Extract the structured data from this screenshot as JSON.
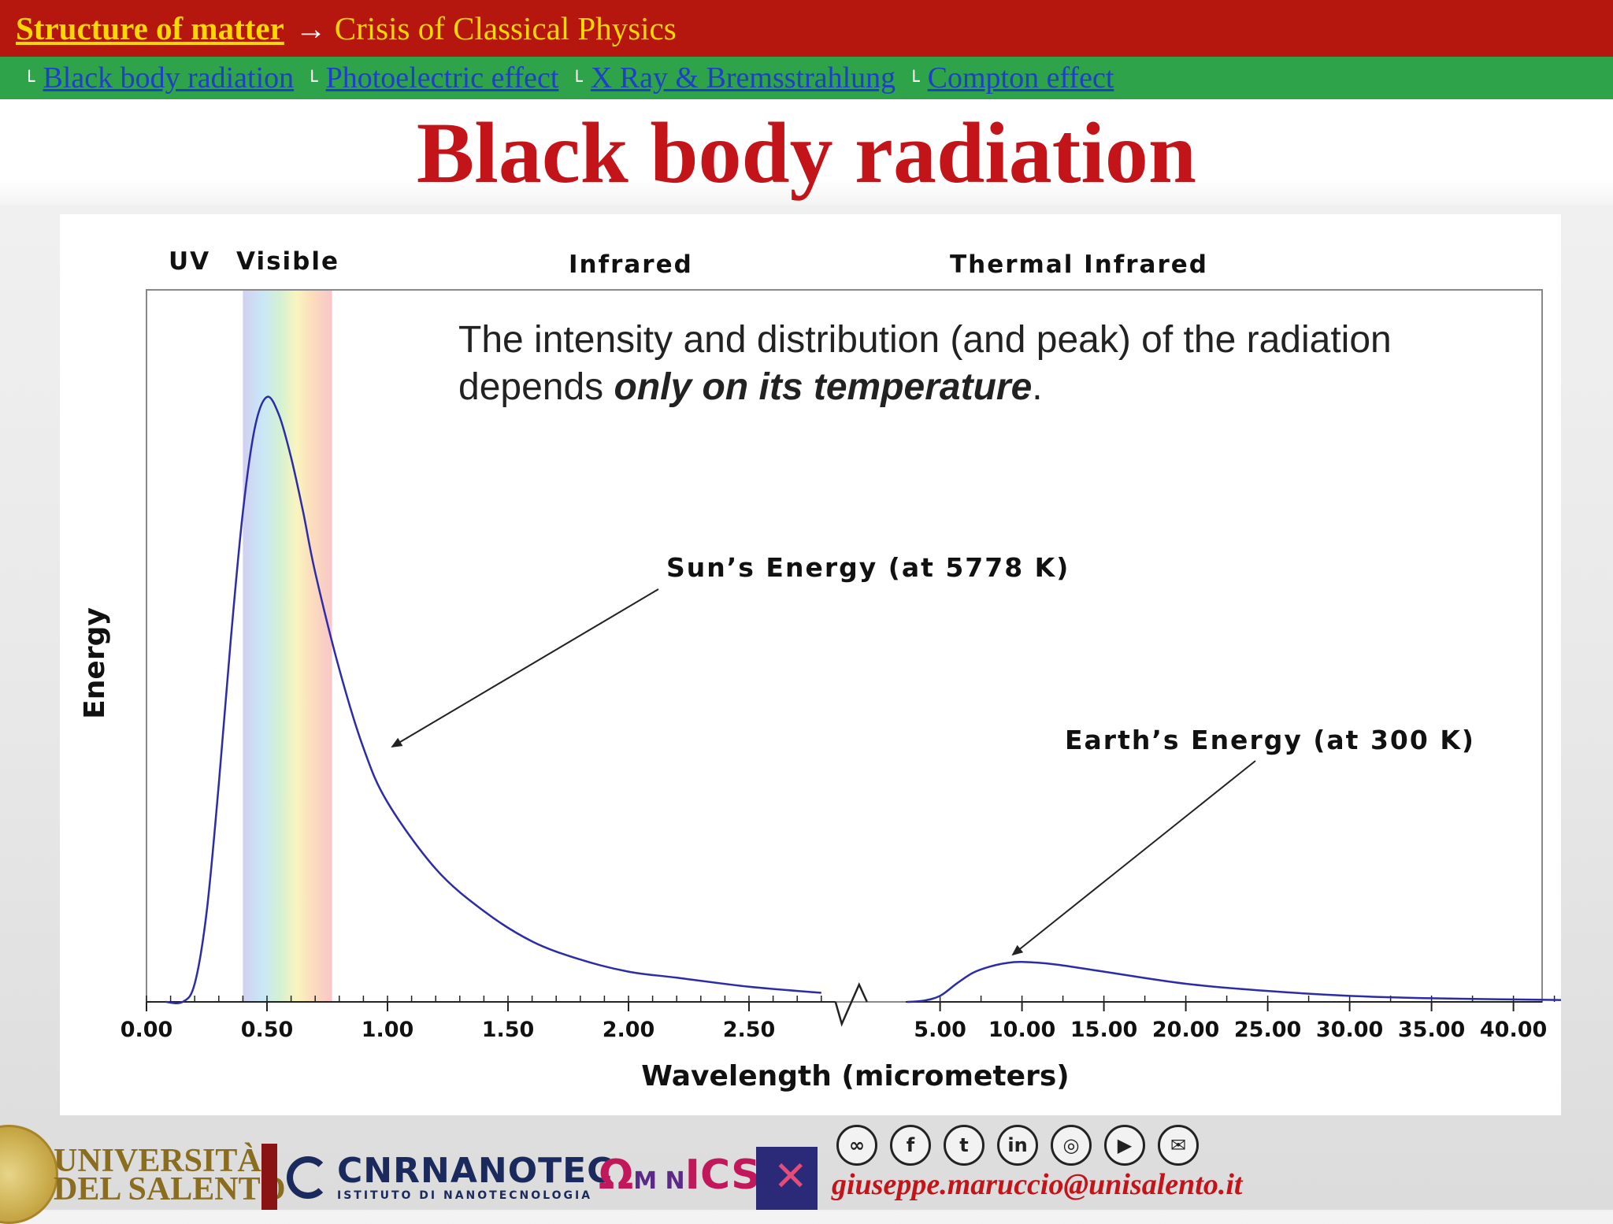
{
  "header": {
    "breadcrumb_main": "Structure of matter",
    "breadcrumb_arrow": "→",
    "breadcrumb_sub": "Crisis of Classical Physics"
  },
  "nav": {
    "items": [
      {
        "label": "Black body radiation "
      },
      {
        "label": "Photoelectric effect "
      },
      {
        "label": "X Ray & Bremsstrahlung "
      },
      {
        "label": "Compton effect"
      }
    ]
  },
  "title": "Black body radiation",
  "info_text": {
    "line1": "The intensity and distribution (and peak) of the radiation",
    "prefix": "depends ",
    "emphasis": "only on its temperature",
    "suffix": "."
  },
  "colors": {
    "accent_red": "#c3141a",
    "top_bar": "#b5170f",
    "nav_bar": "#2fa34a",
    "nav_link": "#1e40c8",
    "breadcrumb": "#ffd700",
    "curve": "#2c2ca8"
  },
  "chart_data": {
    "type": "line",
    "xlabel": "Wavelength (micrometers)",
    "ylabel": "Energy",
    "band_labels": [
      "UV",
      "Visible",
      "Infrared",
      "Thermal Infrared"
    ],
    "x_axis_broken": true,
    "ticks_left": [
      "0.00",
      "0.50",
      "1.00",
      "1.50",
      "2.00",
      "2.50"
    ],
    "ticks_right": [
      "5.00",
      "10.00",
      "15.00",
      "20.00",
      "25.00",
      "30.00",
      "35.00",
      "40.00"
    ],
    "visible_band": [
      0.4,
      0.77
    ],
    "series": [
      {
        "name": "Sun's Energy (at 5778 K)",
        "x": [
          0.15,
          0.2,
          0.25,
          0.3,
          0.35,
          0.4,
          0.45,
          0.5,
          0.55,
          0.6,
          0.65,
          0.7,
          0.8,
          0.9,
          1.0,
          1.2,
          1.4,
          1.6,
          1.8,
          2.0,
          2.2,
          2.5,
          2.8
        ],
        "y": [
          0.0,
          0.03,
          0.15,
          0.36,
          0.6,
          0.81,
          0.95,
          1.0,
          0.97,
          0.9,
          0.81,
          0.71,
          0.55,
          0.42,
          0.33,
          0.22,
          0.15,
          0.1,
          0.07,
          0.05,
          0.04,
          0.025,
          0.015
        ]
      },
      {
        "name": "Earth's Energy (at 300 K)",
        "x": [
          3.0,
          4.0,
          5.0,
          6.0,
          7.0,
          8.0,
          9.0,
          10.0,
          12.0,
          15.0,
          20.0,
          25.0,
          30.0,
          35.0,
          40.0,
          43.0
        ],
        "y": [
          0.0,
          0.002,
          0.01,
          0.03,
          0.048,
          0.058,
          0.064,
          0.066,
          0.062,
          0.05,
          0.03,
          0.018,
          0.01,
          0.006,
          0.004,
          0.003
        ]
      }
    ],
    "annotations": [
      {
        "text": "Sun’s Energy (at 5778 K)",
        "target_x": 1.0,
        "target_series": 0
      },
      {
        "text": "Earth’s Energy (at 300 K)",
        "target_x": 10.0,
        "target_series": 1
      }
    ]
  },
  "footer": {
    "university_line1": "UNIVERSITÀ",
    "university_line2": "DEL SALENTO",
    "cnr_name": "CNRNANOTEC",
    "cnr_subtitle": "ISTITUTO DI NANOTECNOLOGIA",
    "omnics_left": "Ω",
    "omnics_mid": "M N",
    "omnics_right": "ICS",
    "social_icons": [
      "link-icon",
      "facebook-icon",
      "twitter-icon",
      "linkedin-icon",
      "instagram-icon",
      "youtube-icon",
      "mail-icon"
    ],
    "email": "giuseppe.maruccio@unisalento.it"
  }
}
